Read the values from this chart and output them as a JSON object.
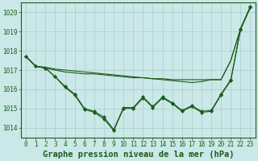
{
  "title": "Graphe pression niveau de la mer (hPa)",
  "background_color": "#cbe8e8",
  "grid_color": "#a8cccc",
  "line_color": "#1a5c1a",
  "markersize": 2.5,
  "linewidth": 0.8,
  "ylim": [
    1013.5,
    1020.5
  ],
  "yticks": [
    1014,
    1015,
    1016,
    1017,
    1018,
    1019,
    1020
  ],
  "title_fontsize": 7.5,
  "tick_fontsize": 5.5,
  "smooth_line1": [
    1017.7,
    1017.2,
    1017.1,
    1017.0,
    1016.9,
    1016.85,
    1016.8,
    1016.8,
    1016.75,
    1016.7,
    1016.65,
    1016.6,
    1016.6,
    1016.55,
    1016.55,
    1016.5,
    1016.5,
    1016.5,
    1016.5,
    1016.5,
    1016.5,
    1017.5,
    1019.15,
    1020.3
  ],
  "smooth_line2": [
    1017.7,
    1017.2,
    1017.15,
    1017.05,
    1017.0,
    1016.95,
    1016.9,
    1016.85,
    1016.8,
    1016.75,
    1016.7,
    1016.65,
    1016.6,
    1016.55,
    1016.5,
    1016.45,
    1016.4,
    1016.35,
    1016.4,
    1016.5,
    1016.5,
    1017.5,
    1019.15,
    1020.3
  ],
  "jagged_line1": [
    1017.7,
    1017.2,
    1017.1,
    1016.65,
    1016.15,
    1015.75,
    1015.0,
    1014.85,
    1014.55,
    1013.9,
    1015.05,
    1015.05,
    1015.6,
    1015.1,
    1015.6,
    1015.3,
    1014.9,
    1015.15,
    1014.85,
    1014.9,
    1015.75,
    1016.5,
    1019.15,
    1020.3
  ],
  "jagged_line2": [
    1017.7,
    1017.2,
    1017.1,
    1016.65,
    1016.1,
    1015.7,
    1014.95,
    1014.8,
    1014.45,
    1013.85,
    1015.0,
    1015.0,
    1015.55,
    1015.05,
    1015.55,
    1015.25,
    1014.85,
    1015.1,
    1014.8,
    1014.85,
    1015.7,
    1016.45,
    1019.1,
    1020.25
  ]
}
